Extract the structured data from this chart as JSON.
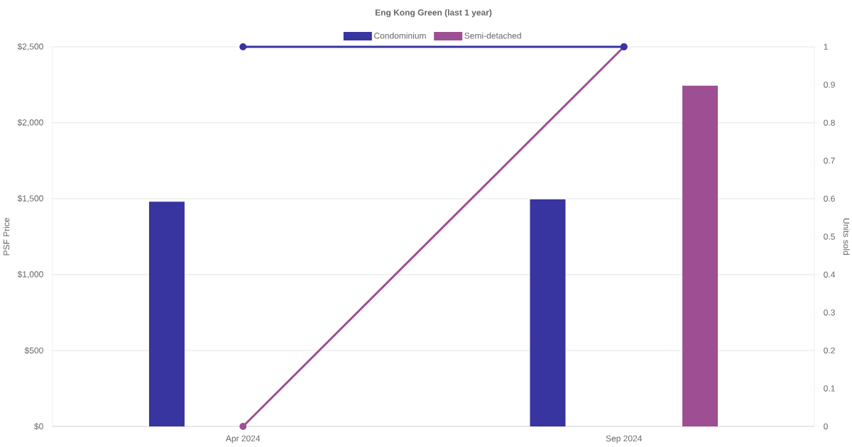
{
  "chart_data": {
    "type": "bar",
    "title": "Eng Kong Green (last 1 year)",
    "ylabel": "PSF Price",
    "y2label": "Units sold",
    "categories": [
      "Apr 2024",
      "Sep 2024"
    ],
    "series": [
      {
        "name": "Condominium",
        "color": "#3834a0",
        "values": [
          1480,
          1495
        ]
      },
      {
        "name": "Semi-detached",
        "color": "#9e4f93",
        "values": [
          null,
          2245
        ]
      },
      {
        "type": "line",
        "axis": "y2",
        "color": "#3834a0",
        "values": [
          1,
          1
        ]
      },
      {
        "type": "line",
        "axis": "y2",
        "color": "#9e4f93",
        "values": [
          0,
          1
        ]
      }
    ],
    "ylim": [
      0,
      2500
    ],
    "yticks": [
      {
        "value": 0,
        "label": "$0"
      },
      {
        "value": 500,
        "label": "$500"
      },
      {
        "value": 1000,
        "label": "$1,000"
      },
      {
        "value": 1500,
        "label": "$1,500"
      },
      {
        "value": 2000,
        "label": "$2,000"
      },
      {
        "value": 2500,
        "label": "$2,500"
      }
    ],
    "y2lim": [
      0,
      1
    ],
    "y2ticks": [
      0,
      0.1,
      0.2,
      0.3,
      0.4,
      0.5,
      0.6,
      0.7,
      0.8,
      0.9,
      1
    ],
    "grid": "y",
    "legend": "top",
    "marker": "circle",
    "line_style": "solid"
  }
}
